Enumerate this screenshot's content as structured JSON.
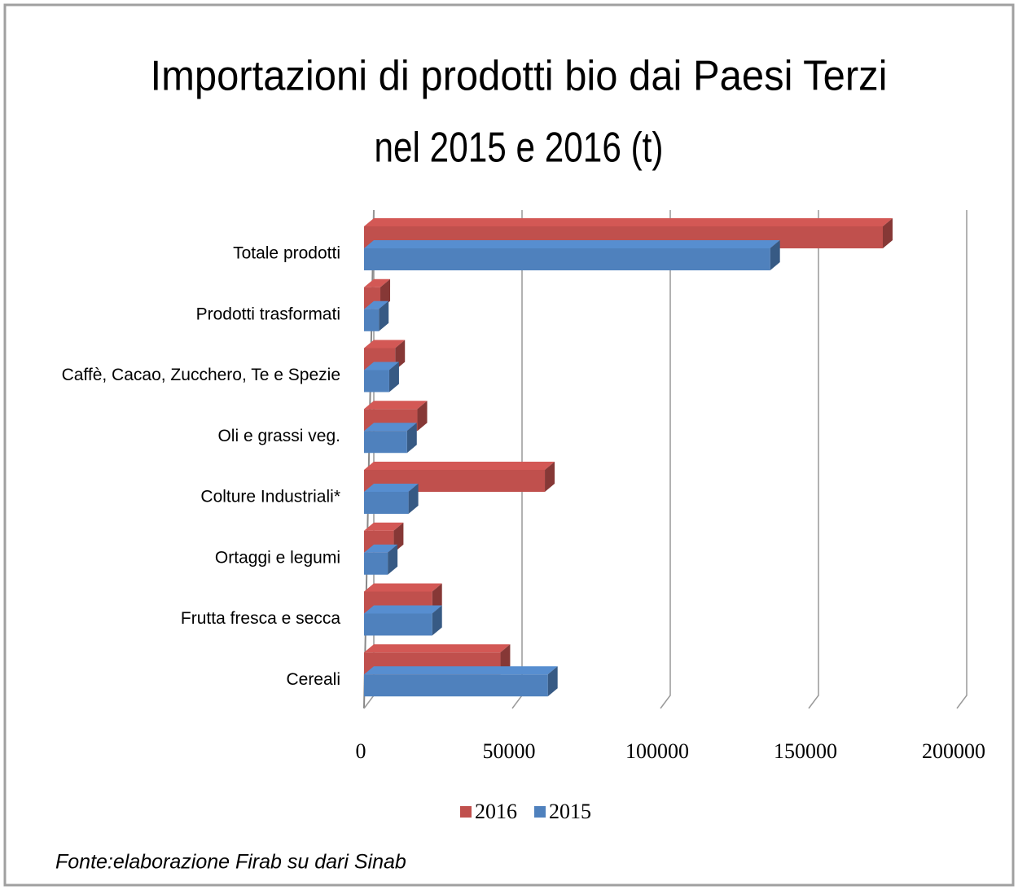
{
  "chart_data": {
    "type": "bar",
    "orientation": "horizontal",
    "title": "Importazioni di prodotti bio dai Paesi Terzi",
    "subtitle": "nel 2015 e 2016 (t)",
    "categories": [
      "Totale prodotti",
      "Prodotti trasformati",
      "Caffè, Cacao, Zucchero, Te e Spezie",
      "Oli e grassi veg.",
      "Colture Industriali*",
      "Ortaggi e legumi",
      "Frutta fresca e secca",
      "Cereali"
    ],
    "series": [
      {
        "name": "2016",
        "color": "#c0504d",
        "values": [
          175000,
          5500,
          10500,
          18000,
          61000,
          10000,
          23000,
          46000
        ]
      },
      {
        "name": "2015",
        "color": "#4f81bd",
        "values": [
          137000,
          5000,
          8500,
          14500,
          15000,
          8000,
          23000,
          62000
        ]
      }
    ],
    "xlim": [
      0,
      200000
    ],
    "xticks": [
      0,
      50000,
      100000,
      150000,
      200000
    ],
    "grid": true,
    "legend": "bottom",
    "source": "Fonte:elaborazione  Firab su dari Sinab"
  }
}
